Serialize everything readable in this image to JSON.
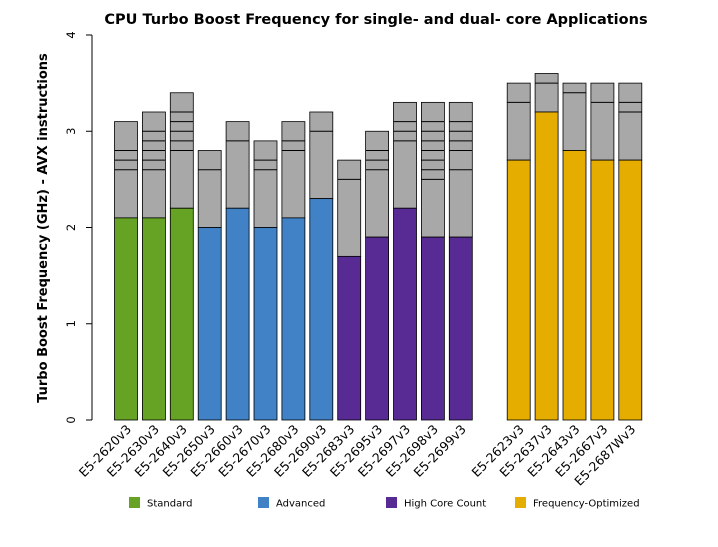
{
  "chart_data": {
    "type": "bar",
    "title": "CPU Turbo Boost Frequency for single- and dual- core Applications",
    "ylabel": "Turbo Boost Frequency (GHz) - AVX instructions",
    "xlabel": "",
    "ylim": [
      0,
      4
    ],
    "yticks": [
      "0",
      "1",
      "2",
      "3",
      "4"
    ],
    "legend_position": "bottom",
    "groups": [
      {
        "name": "Standard",
        "color": "#66a223"
      },
      {
        "name": "Advanced",
        "color": "#4182c6"
      },
      {
        "name": "High Core Count",
        "color": "#582b94"
      },
      {
        "name": "Frequency-Optimized",
        "color": "#e5ad00"
      }
    ],
    "turbo_segment_color": "#a8a8a8",
    "bars": [
      {
        "label": "E5-2620v3",
        "group": "Standard",
        "base": 2.1,
        "turbo_steps": [
          2.6,
          2.7,
          2.8
        ],
        "top": 3.1
      },
      {
        "label": "E5-2630v3",
        "group": "Standard",
        "base": 2.1,
        "turbo_steps": [
          2.6,
          2.7,
          2.8,
          2.9,
          3.0
        ],
        "top": 3.2
      },
      {
        "label": "E5-2640v3",
        "group": "Standard",
        "base": 2.2,
        "turbo_steps": [
          2.8,
          2.9,
          3.0,
          3.1,
          3.2
        ],
        "top": 3.4
      },
      {
        "label": "E5-2650v3",
        "group": "Advanced",
        "base": 2.0,
        "turbo_steps": [
          2.6
        ],
        "top": 2.8
      },
      {
        "label": "E5-2660v3",
        "group": "Advanced",
        "base": 2.2,
        "turbo_steps": [
          2.9
        ],
        "top": 3.1
      },
      {
        "label": "E5-2670v3",
        "group": "Advanced",
        "base": 2.0,
        "turbo_steps": [
          2.6,
          2.7
        ],
        "top": 2.9
      },
      {
        "label": "E5-2680v3",
        "group": "Advanced",
        "base": 2.1,
        "turbo_steps": [
          2.8,
          2.9
        ],
        "top": 3.1
      },
      {
        "label": "E5-2690v3",
        "group": "Advanced",
        "base": 2.3,
        "turbo_steps": [
          3.0
        ],
        "top": 3.2
      },
      {
        "label": "E5-2683v3",
        "group": "High Core Count",
        "base": 1.7,
        "turbo_steps": [
          2.5
        ],
        "top": 2.7
      },
      {
        "label": "E5-2695v3",
        "group": "High Core Count",
        "base": 1.9,
        "turbo_steps": [
          2.6,
          2.7,
          2.8
        ],
        "top": 3.0
      },
      {
        "label": "E5-2697v3",
        "group": "High Core Count",
        "base": 2.2,
        "turbo_steps": [
          2.9,
          3.0,
          3.1
        ],
        "top": 3.3
      },
      {
        "label": "E5-2698v3",
        "group": "High Core Count",
        "base": 1.9,
        "turbo_steps": [
          2.5,
          2.6,
          2.7,
          2.8,
          2.9,
          3.0,
          3.1
        ],
        "top": 3.3
      },
      {
        "label": "E5-2699v3",
        "group": "High Core Count",
        "base": 1.9,
        "turbo_steps": [
          2.6,
          2.8,
          2.9,
          3.0,
          3.1
        ],
        "top": 3.3
      },
      {
        "label": "E5-2623v3",
        "group": "Frequency-Optimized",
        "base": 2.7,
        "turbo_steps": [
          3.3
        ],
        "top": 3.5
      },
      {
        "label": "E5-2637v3",
        "group": "Frequency-Optimized",
        "base": 3.2,
        "turbo_steps": [
          3.5
        ],
        "top": 3.6
      },
      {
        "label": "E5-2643v3",
        "group": "Frequency-Optimized",
        "base": 2.8,
        "turbo_steps": [
          3.4
        ],
        "top": 3.5
      },
      {
        "label": "E5-2667v3",
        "group": "Frequency-Optimized",
        "base": 2.7,
        "turbo_steps": [
          3.3
        ],
        "top": 3.5
      },
      {
        "label": "E5-2687Wv3",
        "group": "Frequency-Optimized",
        "base": 2.7,
        "turbo_steps": [
          3.2,
          3.3
        ],
        "top": 3.5
      }
    ]
  }
}
